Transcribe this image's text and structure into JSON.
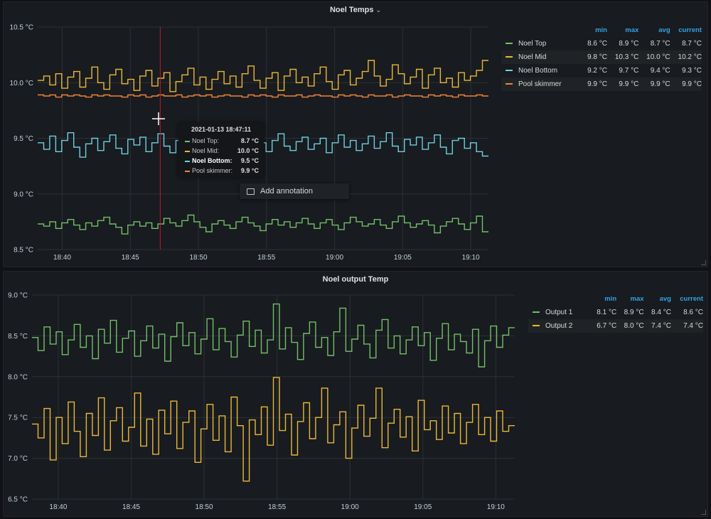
{
  "chart_data": [
    {
      "type": "line",
      "title": "Noel Temps",
      "y_unit": "°C",
      "ylim": [
        8.5,
        10.5
      ],
      "y_ticks": [
        "10.5 °C",
        "10.0 °C",
        "9.5 °C",
        "9.0 °C",
        "8.5 °C"
      ],
      "x_ticks": [
        "18:40",
        "18:45",
        "18:50",
        "18:55",
        "19:00",
        "19:05",
        "19:10"
      ],
      "x_tick_minutes": [
        40,
        45,
        50,
        55,
        60,
        65,
        70
      ],
      "xlim_minutes": [
        38.2,
        71.3
      ],
      "grid": true,
      "legend_placement": "right",
      "legend_columns": [
        "min",
        "max",
        "avg",
        "current"
      ],
      "series": [
        {
          "name": "Noel Top",
          "color": "#73bf69",
          "min": "8.6 °C",
          "max": "8.9 °C",
          "avg": "8.7 °C",
          "current": "8.7 °C",
          "values": [
            8.73,
            8.71,
            8.75,
            8.69,
            8.74,
            8.77,
            8.72,
            8.68,
            8.74,
            8.71,
            8.76,
            8.79,
            8.73,
            8.7,
            8.64,
            8.72,
            8.75,
            8.71,
            8.74,
            8.69,
            8.73,
            8.78,
            8.74,
            8.71,
            8.76,
            8.81,
            8.75,
            8.7,
            8.66,
            8.73,
            8.76,
            8.72,
            8.69,
            8.75,
            8.79,
            8.74,
            8.71,
            8.67,
            8.73,
            8.77,
            8.72,
            8.75,
            8.7,
            8.74,
            8.78,
            8.73,
            8.69,
            8.74,
            8.77,
            8.72,
            8.68,
            8.74,
            8.79,
            8.75,
            8.71,
            8.73,
            8.77,
            8.72,
            8.69,
            8.75,
            8.8,
            8.74,
            8.7,
            8.73,
            8.76,
            8.72,
            8.65,
            8.71,
            8.75,
            8.78,
            8.73,
            8.68,
            8.74,
            8.8,
            8.66
          ]
        },
        {
          "name": "Noel Mid",
          "color": "#eab839",
          "min": "9.8 °C",
          "max": "10.3 °C",
          "avg": "10.0 °C",
          "current": "10.2 °C",
          "values": [
            10.02,
            10.06,
            9.98,
            10.08,
            9.95,
            10.05,
            10.1,
            9.96,
            10.04,
            10.14,
            10.0,
            9.94,
            10.07,
            10.12,
            9.99,
            10.03,
            9.93,
            10.06,
            10.11,
            9.97,
            10.04,
            10.09,
            9.92,
            10.01,
            10.07,
            10.13,
            9.98,
            10.05,
            9.94,
            10.03,
            10.1,
            9.99,
            10.06,
            9.96,
            10.08,
            10.15,
            10.02,
            9.95,
            10.04,
            10.09,
            9.93,
            10.06,
            10.12,
            10.0,
            10.05,
            9.97,
            10.08,
            10.14,
            10.01,
            9.94,
            10.07,
            10.11,
            9.98,
            10.04,
            10.1,
            10.2,
            10.06,
            9.97,
            10.03,
            10.16,
            10.08,
            9.99,
            10.05,
            10.12,
            9.95,
            10.07,
            10.13,
            10.0,
            10.04,
            9.96,
            10.09,
            10.02,
            10.06,
            10.11,
            10.2
          ]
        },
        {
          "name": "Noel Bottom",
          "color": "#6ed0e0",
          "min": "9.2 °C",
          "max": "9.7 °C",
          "avg": "9.4 °C",
          "current": "9.3 °C",
          "values": [
            9.46,
            9.4,
            9.52,
            9.38,
            9.48,
            9.55,
            9.42,
            9.33,
            9.45,
            9.5,
            9.39,
            9.47,
            9.53,
            9.41,
            9.36,
            9.49,
            9.44,
            9.51,
            9.38,
            9.46,
            9.54,
            9.43,
            9.37,
            9.48,
            9.52,
            9.4,
            9.45,
            9.5,
            9.39,
            9.47,
            9.44,
            9.51,
            9.42,
            9.36,
            9.49,
            9.53,
            9.41,
            9.46,
            9.38,
            9.48,
            9.54,
            9.43,
            9.39,
            9.47,
            9.51,
            9.4,
            9.45,
            9.5,
            9.37,
            9.46,
            9.53,
            9.42,
            9.48,
            9.39,
            9.45,
            9.52,
            9.41,
            9.47,
            9.55,
            9.43,
            9.38,
            9.49,
            9.44,
            9.51,
            9.4,
            9.46,
            9.53,
            9.42,
            9.36,
            9.48,
            9.5,
            9.41,
            9.46,
            9.38,
            9.34
          ]
        },
        {
          "name": "Pool skimmer",
          "color": "#ef843c",
          "min": "9.9 °C",
          "max": "9.9 °C",
          "avg": "9.9 °C",
          "current": "9.9 °C",
          "values": [
            9.89,
            9.88,
            9.89,
            9.87,
            9.89,
            9.88,
            9.89,
            9.88,
            9.87,
            9.89,
            9.88,
            9.89,
            9.88,
            9.88,
            9.87,
            9.89,
            9.88,
            9.89,
            9.87,
            9.88,
            9.89,
            9.88,
            9.88,
            9.89,
            9.87,
            9.88,
            9.89,
            9.88,
            9.89,
            9.87,
            9.88,
            9.89,
            9.88,
            9.88,
            9.87,
            9.89,
            9.88,
            9.89,
            9.88,
            9.87,
            9.89,
            9.88,
            9.88,
            9.89,
            9.87,
            9.88,
            9.89,
            9.88,
            9.88,
            9.87,
            9.89,
            9.88,
            9.89,
            9.88,
            9.87,
            9.89,
            9.88,
            9.88,
            9.89,
            9.87,
            9.88,
            9.89,
            9.88,
            9.88,
            9.87,
            9.89,
            9.88,
            9.89,
            9.88,
            9.87,
            9.89,
            9.88,
            9.88,
            9.89,
            9.88
          ]
        }
      ],
      "crosshair_minutes": 47.2,
      "tooltip": {
        "time": "2021-01-13 18:47:11",
        "rows": [
          {
            "label": "Noel Top:",
            "value": "8.7 °C",
            "color": "#73bf69"
          },
          {
            "label": "Noel Mid:",
            "value": "10.0 °C",
            "color": "#eab839"
          },
          {
            "label": "Noel Bottom:",
            "value": "9.5 °C",
            "color": "#6ed0e0"
          },
          {
            "label": "Pool skimmer:",
            "value": "9.9 °C",
            "color": "#ef843c"
          }
        ]
      },
      "context_menu": {
        "add_annotation_label": "Add annotation"
      }
    },
    {
      "type": "line",
      "title": "Noel output Temp",
      "y_unit": "°C",
      "ylim": [
        6.5,
        9.0
      ],
      "y_ticks": [
        "9.0 °C",
        "8.5 °C",
        "8.0 °C",
        "7.5 °C",
        "7.0 °C",
        "6.5 °C"
      ],
      "x_ticks": [
        "18:40",
        "18:45",
        "18:50",
        "18:55",
        "19:00",
        "19:05",
        "19:10"
      ],
      "x_tick_minutes": [
        40,
        45,
        50,
        55,
        60,
        65,
        70
      ],
      "xlim_minutes": [
        38.2,
        71.3
      ],
      "grid": true,
      "legend_placement": "right",
      "legend_columns": [
        "min",
        "max",
        "avg",
        "current"
      ],
      "series": [
        {
          "name": "Output 1",
          "color": "#73bf69",
          "min": "8.1 °C",
          "max": "8.9 °C",
          "avg": "8.4 °C",
          "current": "8.6 °C",
          "values": [
            8.48,
            8.32,
            8.61,
            8.4,
            8.55,
            8.27,
            8.45,
            8.64,
            8.36,
            8.5,
            8.22,
            8.58,
            8.41,
            8.69,
            8.3,
            8.47,
            8.56,
            8.25,
            8.44,
            8.62,
            8.35,
            8.52,
            8.19,
            8.49,
            8.66,
            8.38,
            8.54,
            8.28,
            8.46,
            8.71,
            8.33,
            8.59,
            8.43,
            8.24,
            8.51,
            8.68,
            8.37,
            8.57,
            8.29,
            8.45,
            8.89,
            8.34,
            8.6,
            8.42,
            8.21,
            8.53,
            8.67,
            8.36,
            8.48,
            8.26,
            8.55,
            8.84,
            8.31,
            8.46,
            8.63,
            8.4,
            8.23,
            8.57,
            8.7,
            8.35,
            8.5,
            8.28,
            8.45,
            8.61,
            8.38,
            8.54,
            8.2,
            8.47,
            8.65,
            8.33,
            8.52,
            8.43,
            8.29,
            8.58,
            8.12,
            8.44,
            8.62,
            8.36,
            8.51,
            8.6
          ]
        },
        {
          "name": "Output 2",
          "color": "#eab839",
          "min": "6.7 °C",
          "max": "8.0 °C",
          "avg": "7.4 °C",
          "current": "7.4 °C",
          "values": [
            7.42,
            7.25,
            7.61,
            6.98,
            7.5,
            7.18,
            7.69,
            7.33,
            7.02,
            7.55,
            7.28,
            7.74,
            7.1,
            7.46,
            7.62,
            7.21,
            7.38,
            7.8,
            7.15,
            7.48,
            7.05,
            7.59,
            7.3,
            7.7,
            7.12,
            7.44,
            7.58,
            6.95,
            7.36,
            7.66,
            7.22,
            7.52,
            7.08,
            7.75,
            7.4,
            6.72,
            7.47,
            7.29,
            7.63,
            7.16,
            7.99,
            7.34,
            7.54,
            7.04,
            7.45,
            7.68,
            7.24,
            7.5,
            7.86,
            7.19,
            7.41,
            7.57,
            7.0,
            7.37,
            7.65,
            7.27,
            7.49,
            7.86,
            7.13,
            7.43,
            7.6,
            7.26,
            7.51,
            7.09,
            7.71,
            7.35,
            7.46,
            7.23,
            7.64,
            7.31,
            7.55,
            7.18,
            7.44,
            7.66,
            7.29,
            7.5,
            7.21,
            7.58,
            7.33,
            7.4
          ]
        }
      ]
    }
  ]
}
